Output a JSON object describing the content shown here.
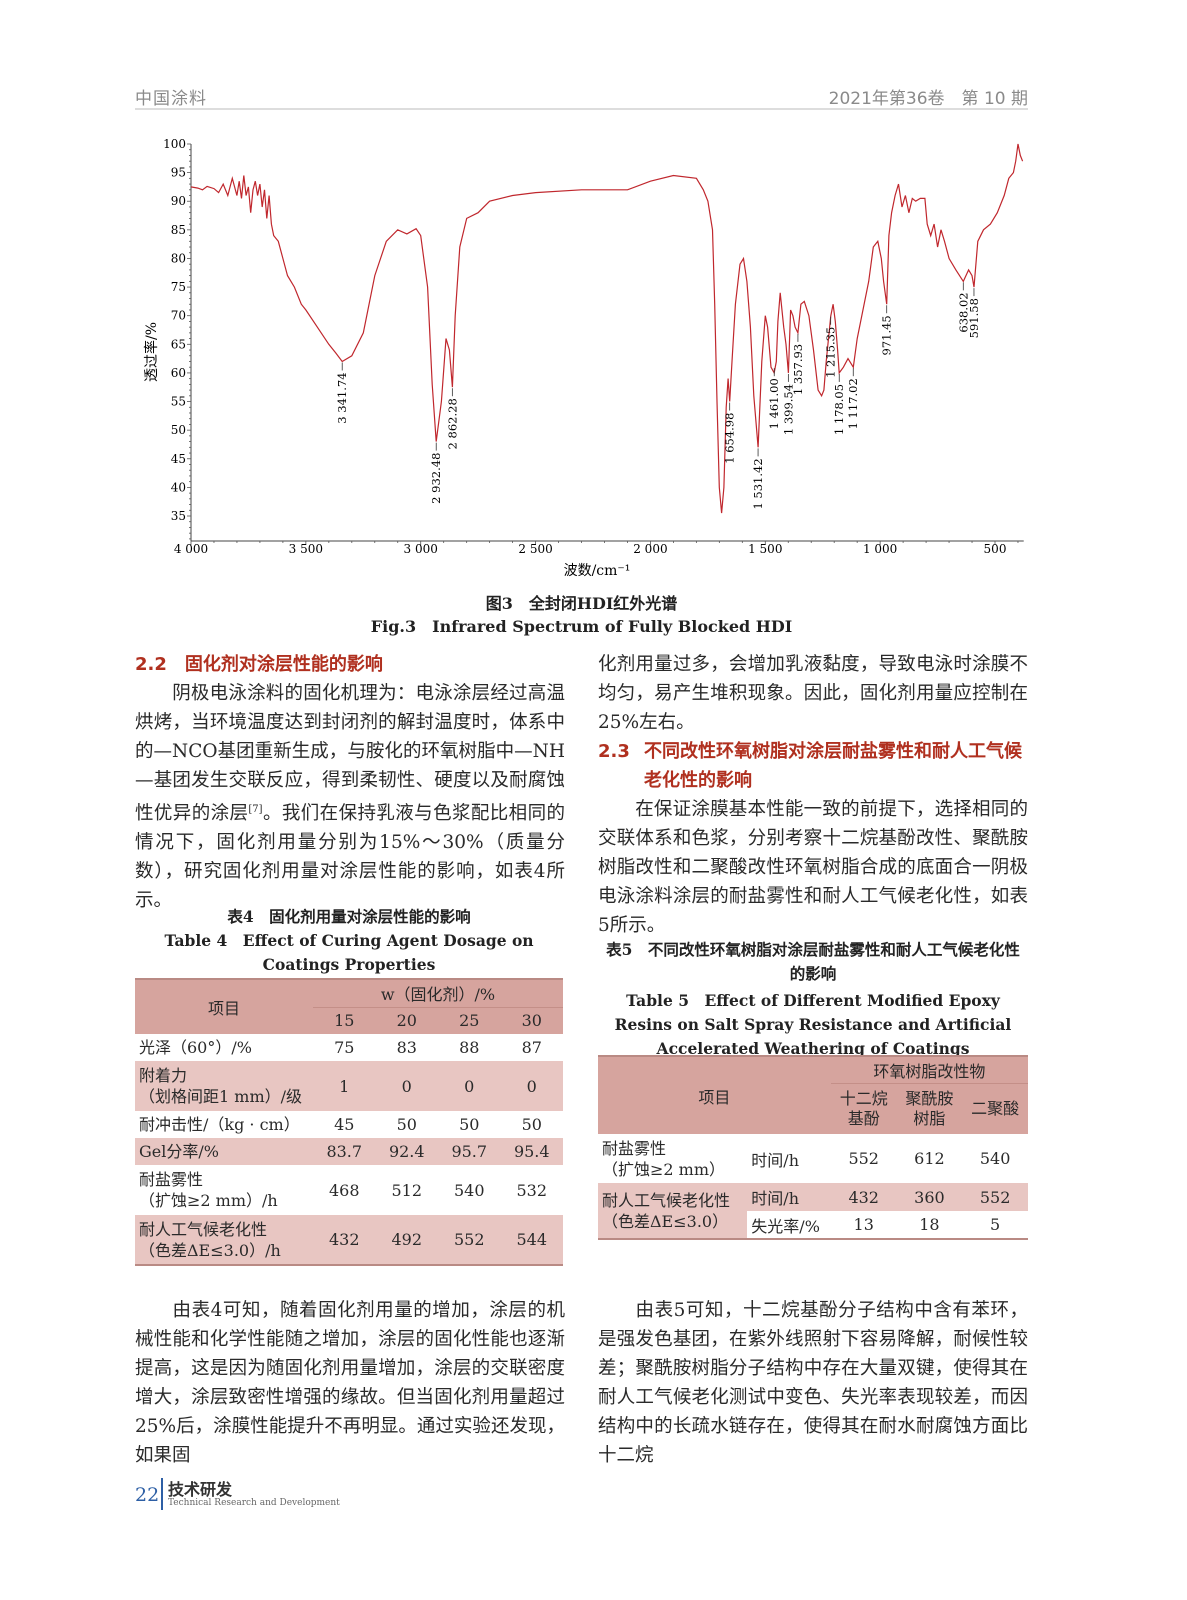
{
  "header": {
    "journal": "中国涂料",
    "issue": "2021年第36卷　第 10 期"
  },
  "figure": {
    "caption_cn": "图3　全封闭HDI红外光谱",
    "caption_en": "Fig.3　Infrared Spectrum of Fully Blocked HDI"
  },
  "chart_data": {
    "type": "line",
    "xlabel": "波数/cm⁻¹",
    "ylabel": "透过率/%",
    "xlim": [
      4000,
      375
    ],
    "ylim": [
      30.6,
      100
    ],
    "x_reversed": true,
    "grid": false,
    "line_color": "#c0272d",
    "xticks": [
      4000,
      3500,
      3000,
      2500,
      2000,
      1500,
      1000,
      500
    ],
    "xtick_labels": [
      "4 000",
      "3 500",
      "3 000",
      "2 500",
      "2 000",
      "1 500",
      "1 000",
      "500"
    ],
    "yticks": [
      35,
      40,
      45,
      50,
      55,
      60,
      65,
      70,
      75,
      80,
      85,
      90,
      95,
      100
    ],
    "ytick_labels": [
      "35",
      "40",
      "45",
      "50",
      "55",
      "60",
      "65",
      "70",
      "75",
      "80",
      "85",
      "90",
      "95",
      "100"
    ],
    "series": [
      {
        "x": [
          4000,
          3970,
          3950,
          3930,
          3900,
          3880,
          3860,
          3840,
          3820,
          3800,
          3790,
          3780,
          3770,
          3760,
          3750,
          3740,
          3730,
          3720,
          3710,
          3700,
          3690,
          3680,
          3670,
          3660,
          3650,
          3640,
          3620,
          3600,
          3580,
          3550,
          3520,
          3500,
          3450,
          3400,
          3370,
          3341.74,
          3300,
          3250,
          3200,
          3150,
          3100,
          3060,
          3020,
          3000,
          2970,
          2950,
          2932.48,
          2910,
          2890,
          2875,
          2862.28,
          2850,
          2830,
          2800,
          2750,
          2700,
          2600,
          2500,
          2300,
          2100,
          2000,
          1900,
          1800,
          1770,
          1750,
          1730,
          1720,
          1710,
          1700,
          1690,
          1680,
          1670,
          1662,
          1654.98,
          1645,
          1630,
          1610,
          1595,
          1580,
          1565,
          1550,
          1531.42,
          1515,
          1500,
          1490,
          1475,
          1461,
          1452,
          1445,
          1435,
          1420,
          1410,
          1399.54,
          1390,
          1380,
          1370,
          1357.93,
          1345,
          1330,
          1310,
          1290,
          1270,
          1255,
          1245,
          1235,
          1225,
          1215,
          1205,
          1195,
          1185,
          1178.05,
          1160,
          1140,
          1117.02,
          1100,
          1080,
          1050,
          1030,
          1010,
          995,
          985,
          971.45,
          962,
          950,
          935,
          920,
          905,
          890,
          875,
          860,
          845,
          825,
          805,
          795,
          780,
          765,
          750,
          735,
          720,
          700,
          670,
          638.02,
          615,
          600,
          591.58,
          575,
          550,
          520,
          490,
          460,
          440,
          420,
          410,
          400,
          390,
          380
        ],
        "y": [
          92.5,
          92.3,
          92,
          92.6,
          92.2,
          91.5,
          93,
          91,
          94,
          91,
          93.5,
          90.5,
          94.5,
          91,
          92.5,
          88,
          92,
          93.5,
          91,
          93,
          89,
          92,
          87,
          91,
          86,
          84,
          83,
          80,
          77,
          75,
          72,
          71,
          68,
          65,
          63.5,
          62,
          63,
          67,
          77,
          83,
          85,
          84.3,
          85.2,
          84,
          75,
          58,
          48,
          55,
          66,
          64,
          57.5,
          70,
          82,
          87,
          88,
          90,
          91,
          91.5,
          92,
          92,
          93.5,
          94.5,
          94,
          92,
          90,
          85,
          72,
          55,
          40,
          35.5,
          40,
          54,
          59,
          55,
          62,
          72,
          79,
          80,
          76,
          68,
          56,
          47,
          62,
          70,
          68,
          61,
          60,
          62,
          69,
          74,
          68,
          65,
          60,
          71,
          70,
          68,
          67,
          72,
          72.5,
          70,
          64,
          57,
          56,
          57,
          62,
          66,
          70,
          72,
          69,
          64,
          60,
          61,
          62.5,
          61,
          66,
          70,
          76,
          82,
          83,
          80,
          76,
          72,
          84,
          88,
          91,
          93,
          89,
          91,
          88,
          90.5,
          90,
          90.5,
          90.5,
          86,
          84,
          86,
          82,
          85,
          83,
          80,
          78,
          76,
          78,
          77,
          75,
          83,
          85,
          86,
          88,
          91,
          94,
          95,
          97,
          100,
          98,
          97
        ]
      }
    ],
    "peaks": [
      {
        "label": "3 341.74",
        "x": 3341.74,
        "y": 62
      },
      {
        "label": "2 932.48",
        "x": 2932.48,
        "y": 48
      },
      {
        "label": "2 862.28",
        "x": 2862.28,
        "y": 57.5
      },
      {
        "label": "1 654.98",
        "x": 1654.98,
        "y": 55
      },
      {
        "label": "1 531.42",
        "x": 1531.42,
        "y": 47
      },
      {
        "label": "1 461.00",
        "x": 1461.0,
        "y": 61
      },
      {
        "label": "1 399.54",
        "x": 1399.54,
        "y": 60
      },
      {
        "label": "1 357.93",
        "x": 1357.93,
        "y": 67
      },
      {
        "label": "1 215.35",
        "x": 1215.35,
        "y": 70
      },
      {
        "label": "1 178.05",
        "x": 1178.05,
        "y": 60
      },
      {
        "label": "1 117.02",
        "x": 1117.02,
        "y": 61
      },
      {
        "label": "971.45",
        "x": 971.45,
        "y": 72
      },
      {
        "label": "638.02",
        "x": 638.02,
        "y": 76
      },
      {
        "label": "591.58",
        "x": 591.58,
        "y": 75
      }
    ]
  },
  "left": {
    "h22": "2.2　固化剂对涂层性能的影响",
    "p1": "阴极电泳涂料的固化机理为：电泳涂层经过高温烘烤，当环境温度达到封闭剂的解封温度时，体系中的—NCO基团重新生成，与胺化的环氧树脂中—NH—基团发生交联反应，得到柔韧性、硬度以及耐腐蚀性优异的涂层",
    "p1_ref": "[7]",
    "p1_tail": "。我们在保持乳液与色浆配比相同的情况下，固化剂用量分别为15%～30%（质量分数），研究固化剂用量对涂层性能的影响，如表4所示。",
    "p2": "由表4可知，随着固化剂用量的增加，涂层的机械性能和化学性能随之增加，涂层的固化性能也逐渐提高，这是因为随固化剂用量增加，涂层的交联密度增大，涂层致密性增强的缘故。但当固化剂用量超过25%后，涂膜性能提升不再明显。通过实验还发现，如果固"
  },
  "table4": {
    "caption_cn": "表4　固化剂用量对涂层性能的影响",
    "caption_en": "Table 4　Effect of Curing Agent Dosage on Coatings Properties",
    "item_header": "项目",
    "group_header": "w（固化剂）/%",
    "cols": [
      "15",
      "20",
      "25",
      "30"
    ],
    "rows": [
      {
        "l1": "光泽（60°）/%",
        "l2": "",
        "v": [
          "75",
          "83",
          "88",
          "87"
        ]
      },
      {
        "l1": "附着力",
        "l2": "（划格间距1 mm）/级",
        "v": [
          "1",
          "0",
          "0",
          "0"
        ]
      },
      {
        "l1": "耐冲击性/（kg · cm）",
        "l2": "",
        "v": [
          "45",
          "50",
          "50",
          "50"
        ]
      },
      {
        "l1": "Gel分率/%",
        "l2": "",
        "v": [
          "83.7",
          "92.4",
          "95.7",
          "95.4"
        ]
      },
      {
        "l1": "耐盐雾性",
        "l2": "（扩蚀≥2 mm）/h",
        "v": [
          "468",
          "512",
          "540",
          "532"
        ]
      },
      {
        "l1": "耐人工气候老化性",
        "l2": "（色差ΔE≤3.0）/h",
        "v": [
          "432",
          "492",
          "552",
          "544"
        ]
      }
    ]
  },
  "right": {
    "p0": "化剂用量过多，会增加乳液黏度，导致电泳时涂膜不均匀，易产生堆积现象。因此，固化剂用量应控制在25%左右。",
    "h23_num": "2.3",
    "h23": "不同改性环氧树脂对涂层耐盐雾性和耐人工气候老化性的影响",
    "p1": "在保证涂膜基本性能一致的前提下，选择相同的交联体系和色浆，分别考察十二烷基酚改性、聚酰胺树脂改性和二聚酸改性环氧树脂合成的底面合一阴极电泳涂料涂层的耐盐雾性和耐人工气候老化性，如表5所示。",
    "p2": "由表5可知，十二烷基酚分子结构中含有苯环，是强发色基团，在紫外线照射下容易降解，耐候性较差；聚酰胺树脂分子结构中存在大量双键，使得其在耐人工气候老化测试中变色、失光率表现较差，而因结构中的长疏水链存在，使得其在耐水耐腐蚀方面比十二烷"
  },
  "table5": {
    "caption_cn": "表5　不同改性环氧树脂对涂层耐盐雾性和耐人工气候老化性的影响",
    "caption_en": "Table 5　Effect of Different Modified Epoxy Resins on Salt Spray Resistance and Artificial Accelerated Weathering of Coatings",
    "item_header": "项目",
    "group_header": "环氧树脂改性物",
    "cols": [
      [
        "十二烷",
        "基酚"
      ],
      [
        "聚酰胺",
        "树脂"
      ],
      [
        "二聚酸",
        ""
      ]
    ],
    "salt": {
      "l1": "耐盐雾性",
      "l2": "（扩蚀≥2 mm）",
      "sub": "时间/h",
      "v": [
        "552",
        "612",
        "540"
      ]
    },
    "weather": {
      "l1": "耐人工气候老化性",
      "l2": "（色差ΔE≤3.0）",
      "sub1": "时间/h",
      "v1": [
        "432",
        "360",
        "552"
      ],
      "sub2": "失光率/%",
      "v2": [
        "13",
        "18",
        "5"
      ]
    }
  },
  "footer": {
    "page": "22",
    "section_cn": "技术研发",
    "section_en": "Technical Research and Development"
  }
}
